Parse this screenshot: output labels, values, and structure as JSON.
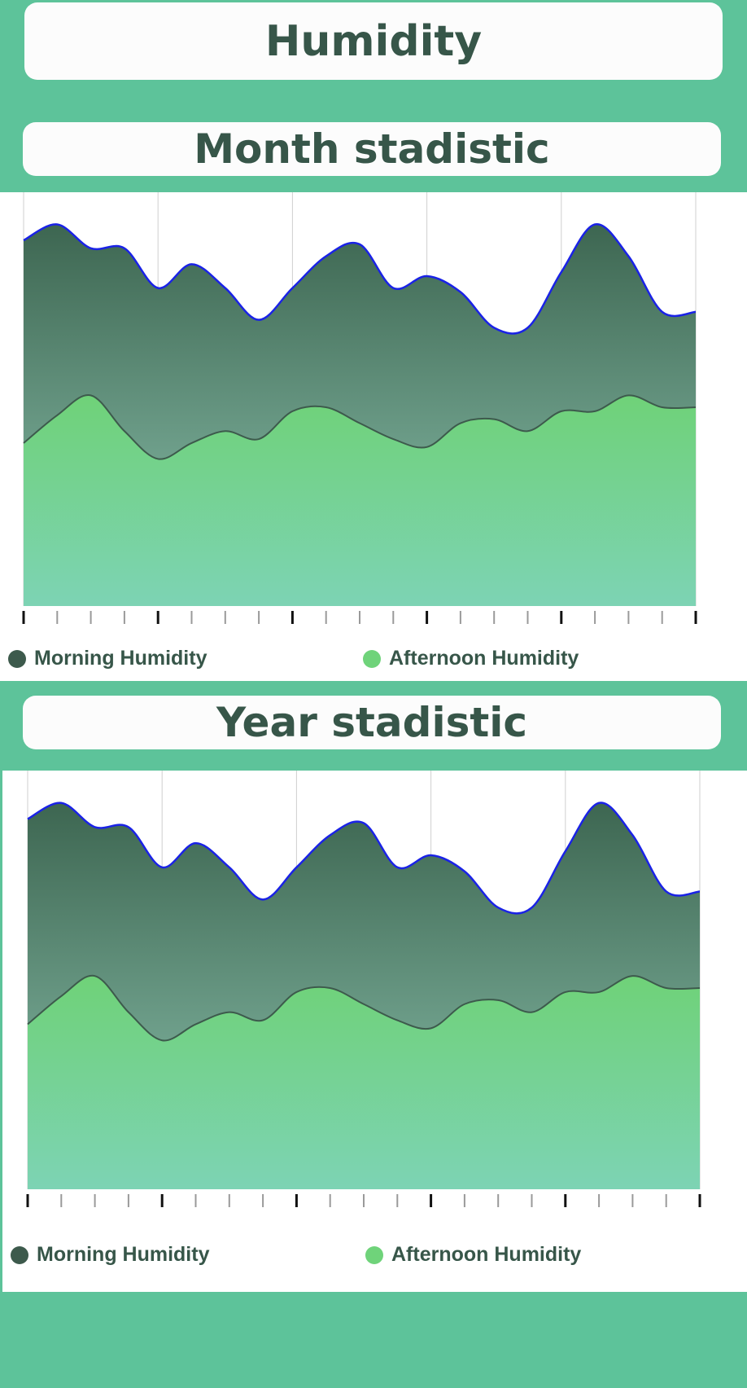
{
  "header": {
    "title": "Humidity"
  },
  "colors": {
    "morning_fill_top": "#3d6651",
    "morning_fill_bottom": "#8ec4b0",
    "morning_stroke": "#1a22e6",
    "afternoon_fill_top": "#6fd278",
    "afternoon_fill_bottom": "#7dd3b4",
    "afternoon_stroke": "#3d5a4c",
    "morning_legend": "#3d5a4c",
    "afternoon_legend": "#6fd37a"
  },
  "month": {
    "title": "Month stadistic",
    "legend": {
      "morning": "Morning Humidity",
      "afternoon": "Afternoon Humidity"
    }
  },
  "year": {
    "title": "Year stadistic",
    "legend": {
      "morning": "Morning Humidity",
      "afternoon": "Afternoon Humidity"
    }
  },
  "chart_data": [
    {
      "type": "area",
      "title": "Month stadistic",
      "x": [
        0,
        1,
        2,
        3,
        4,
        5,
        6,
        7,
        8,
        9,
        10,
        11,
        12,
        13,
        14,
        15,
        16,
        17,
        18,
        19,
        20
      ],
      "ylim": [
        0,
        100
      ],
      "grid": true,
      "legend_position": "bottom",
      "series": [
        {
          "name": "Morning Humidity",
          "values": [
            92,
            96,
            90,
            90,
            80,
            86,
            80,
            72,
            80,
            88,
            91,
            80,
            83,
            79,
            70,
            70,
            84,
            96,
            88,
            74,
            74
          ]
        },
        {
          "name": "Afternoon Humidity",
          "values": [
            41,
            48,
            53,
            44,
            37,
            41,
            44,
            42,
            49,
            50,
            46,
            42,
            40,
            46,
            47,
            44,
            49,
            49,
            53,
            50,
            50
          ]
        }
      ]
    },
    {
      "type": "area",
      "title": "Year stadistic",
      "x": [
        0,
        1,
        2,
        3,
        4,
        5,
        6,
        7,
        8,
        9,
        10,
        11,
        12,
        13,
        14,
        15,
        16,
        17,
        18,
        19,
        20
      ],
      "ylim": [
        0,
        100
      ],
      "grid": true,
      "legend_position": "bottom",
      "series": [
        {
          "name": "Morning Humidity",
          "values": [
            92,
            96,
            90,
            90,
            80,
            86,
            80,
            72,
            80,
            88,
            91,
            80,
            83,
            79,
            70,
            70,
            84,
            96,
            88,
            74,
            74
          ]
        },
        {
          "name": "Afternoon Humidity",
          "values": [
            41,
            48,
            53,
            44,
            37,
            41,
            44,
            42,
            49,
            50,
            46,
            42,
            40,
            46,
            47,
            44,
            49,
            49,
            53,
            50,
            50
          ]
        }
      ]
    }
  ]
}
